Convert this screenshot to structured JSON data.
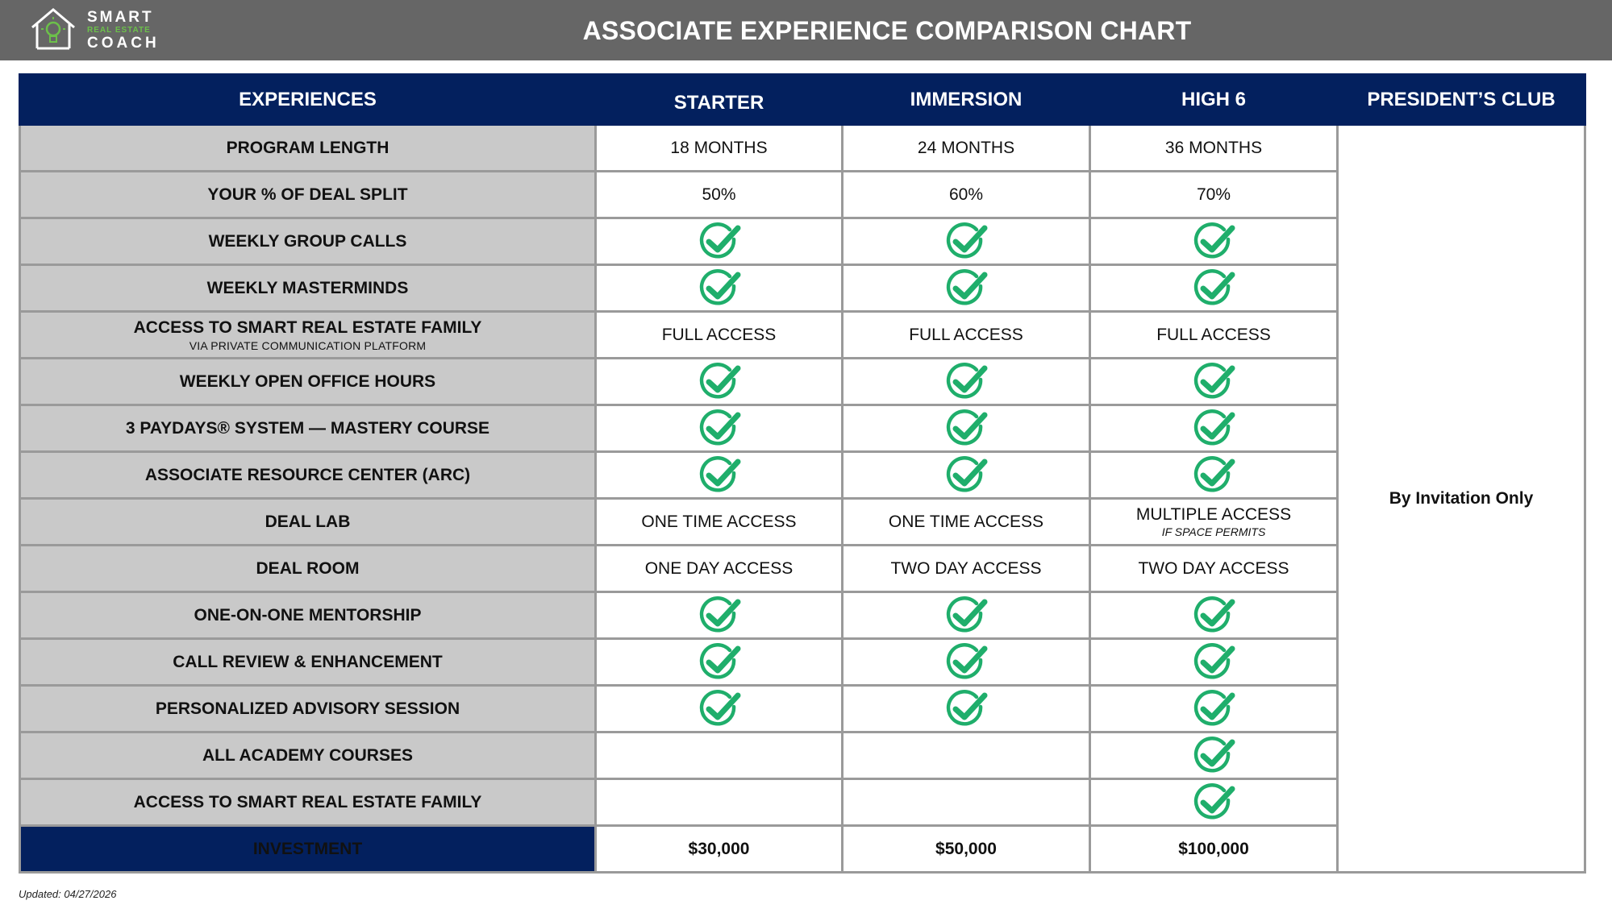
{
  "brand": {
    "line1": "SMART",
    "line2": "REAL ESTATE",
    "line3": "COACH",
    "accent_color": "#6cc04a"
  },
  "title": "ASSOCIATE EXPERIENCE COMPARISON CHART",
  "colors": {
    "header_bg": "#03205e",
    "topbar_bg": "#666666",
    "feature_bg": "#c9c9c9",
    "check": "#1fae6b",
    "price": "#1fae6b"
  },
  "columns": {
    "feature": "EXPERIENCES",
    "starter": "STARTER",
    "immersion": "IMMERSION",
    "high6": "HIGH 6",
    "president": "PRESIDENT’S CLUB"
  },
  "president_value": "By Invitation Only",
  "rows": [
    {
      "label": "PROGRAM LENGTH",
      "starter": "18 MONTHS",
      "immersion": "24 MONTHS",
      "high6": "36 MONTHS"
    },
    {
      "label": "YOUR % OF DEAL SPLIT",
      "starter": "50%",
      "immersion": "60%",
      "high6": "70%"
    },
    {
      "label": "WEEKLY GROUP CALLS",
      "starter": "check",
      "immersion": "check",
      "high6": "check"
    },
    {
      "label": "WEEKLY MASTERMINDS",
      "starter": "check",
      "immersion": "check",
      "high6": "check"
    },
    {
      "label": "ACCESS TO SMART REAL ESTATE FAMILY",
      "sublabel": "VIA PRIVATE COMMUNICATION PLATFORM",
      "starter": "FULL ACCESS",
      "immersion": "FULL ACCESS",
      "high6": "FULL ACCESS"
    },
    {
      "label": "WEEKLY OPEN OFFICE HOURS",
      "starter": "check",
      "immersion": "check",
      "high6": "check"
    },
    {
      "label": "3 PAYDAYS® SYSTEM — MASTERY COURSE",
      "starter": "check",
      "immersion": "check",
      "high6": "check"
    },
    {
      "label": "ASSOCIATE RESOURCE CENTER (ARC)",
      "starter": "check",
      "immersion": "check",
      "high6": "check"
    },
    {
      "label": "DEAL LAB",
      "starter": "ONE TIME ACCESS",
      "immersion": "ONE TIME ACCESS",
      "high6": "MULTIPLE ACCESS",
      "high6_note": "IF SPACE PERMITS"
    },
    {
      "label": "DEAL ROOM",
      "starter": "ONE DAY ACCESS",
      "immersion": "TWO DAY ACCESS",
      "high6": "TWO DAY ACCESS"
    },
    {
      "label": "ONE-ON-ONE MENTORSHIP",
      "starter": "check",
      "immersion": "check",
      "high6": "check"
    },
    {
      "label": "CALL REVIEW & ENHANCEMENT",
      "starter": "check",
      "immersion": "check",
      "high6": "check"
    },
    {
      "label": "PERSONALIZED ADVISORY SESSION",
      "starter": "check",
      "immersion": "check",
      "high6": "check"
    },
    {
      "label": "ALL ACADEMY COURSES",
      "starter": "",
      "immersion": "",
      "high6": "check"
    },
    {
      "label": "ACCESS TO SMART REAL ESTATE FAMILY",
      "starter": "",
      "immersion": "",
      "high6": "check"
    }
  ],
  "investment": {
    "label": "INVESTMENT",
    "starter": "$30,000",
    "immersion": "$50,000",
    "high6": "$100,000"
  },
  "updated": "Updated: 04/27/2026"
}
